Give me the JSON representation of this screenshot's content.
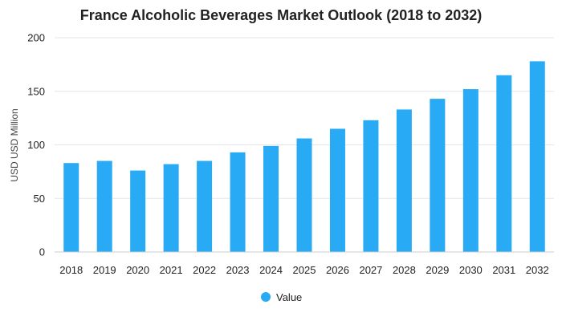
{
  "chart_data": {
    "type": "bar",
    "title": "France Alcoholic Beverages Market Outlook (2018 to 2032)",
    "xlabel": "",
    "ylabel": "USD USD Million",
    "ylim": [
      0,
      200
    ],
    "yticks": [
      0,
      50,
      100,
      150,
      200
    ],
    "grid": true,
    "legend": "bottom",
    "categories": [
      "2018",
      "2019",
      "2020",
      "2021",
      "2022",
      "2023",
      "2024",
      "2025",
      "2026",
      "2027",
      "2028",
      "2029",
      "2030",
      "2031",
      "2032"
    ],
    "series": [
      {
        "name": "Value",
        "color": "#29aaf4",
        "values": [
          83,
          85,
          76,
          82,
          85,
          93,
          99,
          106,
          115,
          123,
          133,
          143,
          152,
          165,
          178
        ]
      }
    ]
  }
}
